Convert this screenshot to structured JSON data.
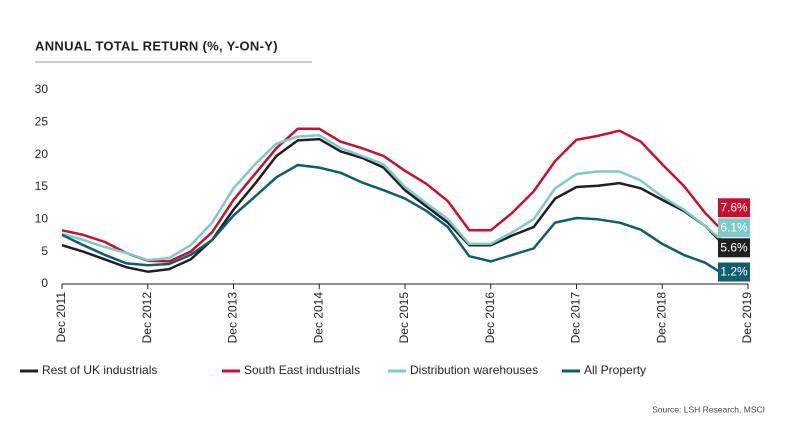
{
  "chart_data": {
    "type": "line",
    "title": "ANNUAL TOTAL RETURN (%, Y-ON-Y)",
    "source": "Source: LSH Research, MSCI",
    "categories": [
      "Dec 2011",
      null,
      null,
      null,
      "Dec 2012",
      null,
      null,
      null,
      "Dec 2013",
      null,
      null,
      null,
      "Dec 2014",
      null,
      null,
      null,
      "Dec 2015",
      null,
      null,
      null,
      "Dec 2016",
      null,
      null,
      null,
      "Dec 2017",
      null,
      null,
      null,
      "Dec 2018",
      null,
      null,
      null,
      "Dec 2019"
    ],
    "ylim": [
      0,
      30
    ],
    "yticks": [
      0,
      5,
      10,
      15,
      20,
      25,
      30
    ],
    "grid": false,
    "legend": "bottom",
    "series": [
      {
        "name": "Rest of UK industrials",
        "color": "#231f20",
        "values": [
          6.0,
          5.0,
          3.8,
          2.6,
          1.9,
          2.3,
          3.8,
          6.8,
          11.5,
          15.5,
          19.8,
          22.2,
          22.4,
          20.5,
          19.5,
          18.0,
          14.5,
          12.0,
          9.5,
          6.0,
          6.0,
          7.5,
          8.8,
          13.2,
          15.0,
          15.2,
          15.6,
          14.8,
          13.0,
          11.3,
          9.0,
          5.6,
          null
        ],
        "value_labels": [
          null,
          null,
          null,
          null,
          null,
          null,
          null,
          null,
          null,
          null,
          null,
          null,
          null,
          null,
          null,
          null,
          null,
          null,
          null,
          null,
          null,
          null,
          null,
          null,
          null,
          null,
          null,
          null,
          null,
          null,
          null,
          "5.6%",
          null
        ]
      },
      {
        "name": "South East industrials",
        "color": "#c8102e",
        "values": [
          8.3,
          7.6,
          6.5,
          4.8,
          3.6,
          3.5,
          5.0,
          8.0,
          13.0,
          17.0,
          21.0,
          24.0,
          24.0,
          22.0,
          21.0,
          19.8,
          17.5,
          15.5,
          12.8,
          8.3,
          8.3,
          11.0,
          14.3,
          19.0,
          22.3,
          22.9,
          23.7,
          22.0,
          18.5,
          15.2,
          11.0,
          7.6,
          null
        ],
        "value_labels": [
          null,
          null,
          null,
          null,
          null,
          null,
          null,
          null,
          null,
          null,
          null,
          null,
          null,
          null,
          null,
          null,
          null,
          null,
          null,
          null,
          null,
          null,
          null,
          null,
          null,
          null,
          null,
          null,
          null,
          null,
          null,
          "7.6%",
          null
        ]
      },
      {
        "name": "Distribution warehouses",
        "color": "#7ecac8",
        "values": [
          7.8,
          6.8,
          5.7,
          4.8,
          3.7,
          4.0,
          6.0,
          9.5,
          14.8,
          18.5,
          21.7,
          22.8,
          23.0,
          21.0,
          19.8,
          18.5,
          15.0,
          12.5,
          10.0,
          6.2,
          6.2,
          8.0,
          10.0,
          14.8,
          17.0,
          17.4,
          17.4,
          16.0,
          13.5,
          11.5,
          9.0,
          6.1,
          null
        ],
        "value_labels": [
          null,
          null,
          null,
          null,
          null,
          null,
          null,
          null,
          null,
          null,
          null,
          null,
          null,
          null,
          null,
          null,
          null,
          null,
          null,
          null,
          null,
          null,
          null,
          null,
          null,
          null,
          null,
          null,
          null,
          null,
          null,
          "6.1%",
          null
        ]
      },
      {
        "name": "All Property",
        "color": "#0e5e6f",
        "values": [
          7.6,
          6.0,
          4.5,
          3.2,
          2.9,
          3.1,
          4.5,
          6.8,
          10.6,
          13.5,
          16.5,
          18.4,
          18.0,
          17.2,
          15.7,
          14.5,
          13.2,
          11.3,
          8.8,
          4.3,
          3.5,
          4.5,
          5.5,
          9.5,
          10.2,
          10.0,
          9.5,
          8.4,
          6.2,
          4.5,
          3.3,
          1.2,
          null
        ],
        "value_labels": [
          null,
          null,
          null,
          null,
          null,
          null,
          null,
          null,
          null,
          null,
          null,
          null,
          null,
          null,
          null,
          null,
          null,
          null,
          null,
          null,
          null,
          null,
          null,
          null,
          null,
          null,
          null,
          null,
          null,
          null,
          null,
          "1.2%",
          null
        ]
      }
    ]
  }
}
